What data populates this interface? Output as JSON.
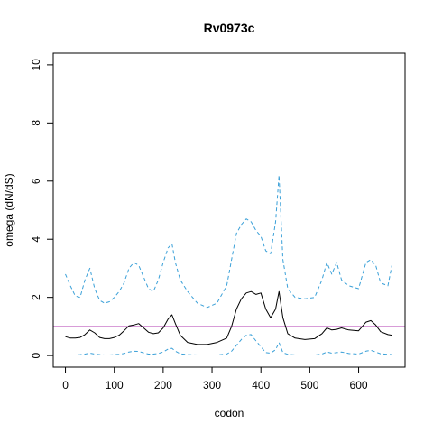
{
  "chart_data": {
    "type": "line",
    "title": "Rv0973c",
    "xlabel": "codon",
    "ylabel": "omega (dN/dS)",
    "xlim": [
      -25,
      695
    ],
    "ylim": [
      -0.4,
      10.4
    ],
    "xticks": [
      0,
      100,
      200,
      300,
      400,
      500,
      600
    ],
    "yticks": [
      0,
      2,
      4,
      6,
      8,
      10
    ],
    "grid": false,
    "reference_line": {
      "y": 1,
      "color": "#c060c0"
    },
    "series": [
      {
        "style": "solid",
        "color": "#000000",
        "x": [
          0,
          10,
          20,
          30,
          40,
          50,
          60,
          70,
          80,
          90,
          100,
          110,
          120,
          130,
          140,
          150,
          160,
          170,
          180,
          190,
          200,
          210,
          218,
          225,
          235,
          250,
          270,
          290,
          310,
          330,
          340,
          350,
          360,
          370,
          380,
          390,
          400,
          410,
          420,
          430,
          437,
          445,
          455,
          470,
          490,
          510,
          525,
          535,
          545,
          555,
          565,
          580,
          600,
          615,
          625,
          635,
          645,
          660,
          668
        ],
        "values": [
          0.65,
          0.6,
          0.6,
          0.62,
          0.72,
          0.88,
          0.78,
          0.62,
          0.58,
          0.58,
          0.62,
          0.7,
          0.85,
          1.02,
          1.05,
          1.1,
          0.95,
          0.8,
          0.75,
          0.78,
          0.95,
          1.25,
          1.4,
          1.1,
          0.7,
          0.45,
          0.38,
          0.38,
          0.45,
          0.6,
          1.0,
          1.6,
          1.95,
          2.15,
          2.2,
          2.1,
          2.15,
          1.6,
          1.3,
          1.6,
          2.2,
          1.3,
          0.75,
          0.6,
          0.55,
          0.58,
          0.75,
          0.95,
          0.88,
          0.9,
          0.95,
          0.88,
          0.85,
          1.15,
          1.2,
          1.05,
          0.82,
          0.72,
          0.7
        ]
      },
      {
        "style": "dashed",
        "color": "#3aa0d8",
        "x": [
          0,
          10,
          20,
          30,
          40,
          50,
          60,
          70,
          80,
          90,
          100,
          110,
          120,
          130,
          140,
          150,
          160,
          170,
          180,
          190,
          200,
          210,
          218,
          225,
          235,
          250,
          270,
          290,
          310,
          330,
          340,
          350,
          360,
          370,
          380,
          390,
          400,
          410,
          420,
          430,
          437,
          445,
          455,
          470,
          490,
          510,
          525,
          535,
          545,
          555,
          565,
          580,
          600,
          615,
          625,
          635,
          645,
          660,
          668
        ],
        "values": [
          2.8,
          2.4,
          2.05,
          2.0,
          2.6,
          3.0,
          2.3,
          1.9,
          1.8,
          1.85,
          2.0,
          2.2,
          2.5,
          3.0,
          3.2,
          3.1,
          2.7,
          2.3,
          2.2,
          2.6,
          3.2,
          3.7,
          3.85,
          3.2,
          2.6,
          2.2,
          1.8,
          1.65,
          1.8,
          2.4,
          3.3,
          4.2,
          4.5,
          4.7,
          4.6,
          4.3,
          4.1,
          3.6,
          3.5,
          4.6,
          6.2,
          3.3,
          2.3,
          2.0,
          1.95,
          2.0,
          2.6,
          3.2,
          2.8,
          3.2,
          2.6,
          2.4,
          2.3,
          3.2,
          3.3,
          3.1,
          2.5,
          2.4,
          3.1
        ]
      },
      {
        "style": "dashed",
        "color": "#3aa0d8",
        "x": [
          0,
          10,
          20,
          30,
          40,
          50,
          60,
          70,
          80,
          90,
          100,
          110,
          120,
          130,
          140,
          150,
          160,
          170,
          180,
          190,
          200,
          210,
          218,
          225,
          235,
          250,
          270,
          290,
          310,
          330,
          340,
          350,
          360,
          370,
          380,
          390,
          400,
          410,
          420,
          430,
          437,
          445,
          455,
          470,
          490,
          510,
          525,
          535,
          545,
          555,
          565,
          580,
          600,
          615,
          625,
          635,
          645,
          660,
          668
        ],
        "values": [
          0.02,
          0.02,
          0.02,
          0.03,
          0.05,
          0.08,
          0.05,
          0.03,
          0.02,
          0.02,
          0.03,
          0.04,
          0.07,
          0.12,
          0.15,
          0.14,
          0.09,
          0.05,
          0.05,
          0.07,
          0.12,
          0.22,
          0.25,
          0.15,
          0.06,
          0.03,
          0.02,
          0.02,
          0.02,
          0.05,
          0.15,
          0.35,
          0.55,
          0.7,
          0.72,
          0.5,
          0.3,
          0.1,
          0.08,
          0.2,
          0.45,
          0.1,
          0.04,
          0.02,
          0.02,
          0.02,
          0.05,
          0.12,
          0.08,
          0.1,
          0.12,
          0.07,
          0.05,
          0.15,
          0.18,
          0.12,
          0.06,
          0.04,
          0.03
        ]
      }
    ]
  }
}
